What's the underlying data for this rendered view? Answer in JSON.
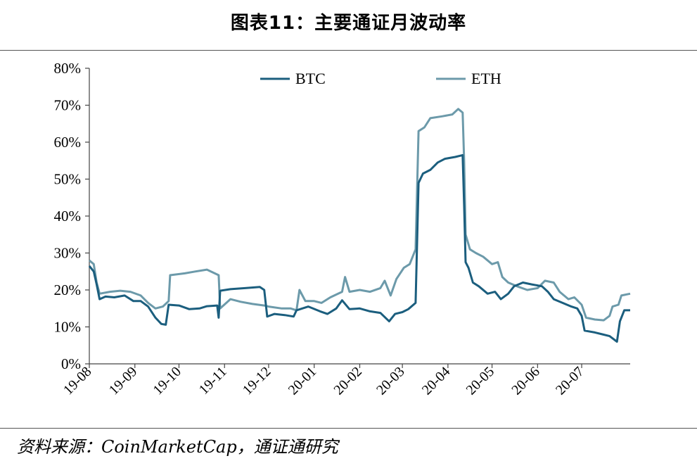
{
  "page": {
    "title": "图表11：主要通证月波动率",
    "source": "资料来源：CoinMarketCap，通证通研究"
  },
  "chart_data": {
    "type": "line",
    "title": "图表11：主要通证月波动率",
    "xlabel": "",
    "ylabel": "",
    "ylim": [
      0,
      80
    ],
    "y_ticks": [
      "0%",
      "10%",
      "20%",
      "30%",
      "40%",
      "50%",
      "60%",
      "70%",
      "80%"
    ],
    "x_ticks": [
      "19-08",
      "19-09",
      "19-10",
      "19-11",
      "19-12",
      "20-01",
      "20-02",
      "20-03",
      "20-04",
      "20-05",
      "20-06",
      "20-07"
    ],
    "x_range": [
      "2019-08-01",
      "2020-08-03"
    ],
    "legend_position": "top",
    "grid": false,
    "series": [
      {
        "name": "BTC",
        "color": "#1b5e7e",
        "points": [
          [
            "2019-08-01",
            26.5
          ],
          [
            "2019-08-04",
            25.0
          ],
          [
            "2019-08-06",
            21.5
          ],
          [
            "2019-08-08",
            17.5
          ],
          [
            "2019-08-12",
            18.2
          ],
          [
            "2019-08-18",
            18.0
          ],
          [
            "2019-08-25",
            18.5
          ],
          [
            "2019-08-31",
            17.0
          ],
          [
            "2019-09-05",
            17.0
          ],
          [
            "2019-09-10",
            15.5
          ],
          [
            "2019-09-15",
            12.5
          ],
          [
            "2019-09-19",
            10.8
          ],
          [
            "2019-09-22",
            10.6
          ],
          [
            "2019-09-24",
            16.0
          ],
          [
            "2019-10-01",
            15.8
          ],
          [
            "2019-10-08",
            14.8
          ],
          [
            "2019-10-15",
            15.0
          ],
          [
            "2019-10-20",
            15.6
          ],
          [
            "2019-10-27",
            15.8
          ],
          [
            "2019-10-28",
            12.5
          ],
          [
            "2019-10-29",
            19.8
          ],
          [
            "2019-11-05",
            20.2
          ],
          [
            "2019-11-15",
            20.5
          ],
          [
            "2019-11-25",
            20.8
          ],
          [
            "2019-11-28",
            20.0
          ],
          [
            "2019-11-30",
            12.8
          ],
          [
            "2019-12-05",
            13.5
          ],
          [
            "2019-12-12",
            13.2
          ],
          [
            "2019-12-18",
            12.8
          ],
          [
            "2019-12-20",
            14.5
          ],
          [
            "2019-12-28",
            15.5
          ],
          [
            "2020-01-05",
            14.2
          ],
          [
            "2020-01-10",
            13.5
          ],
          [
            "2020-01-16",
            15.0
          ],
          [
            "2020-01-20",
            17.2
          ],
          [
            "2020-01-25",
            14.8
          ],
          [
            "2020-02-01",
            15.0
          ],
          [
            "2020-02-08",
            14.2
          ],
          [
            "2020-02-15",
            13.8
          ],
          [
            "2020-02-21",
            11.5
          ],
          [
            "2020-02-25",
            13.5
          ],
          [
            "2020-03-01",
            14.0
          ],
          [
            "2020-03-05",
            14.8
          ],
          [
            "2020-03-10",
            16.5
          ],
          [
            "2020-03-12",
            49.0
          ],
          [
            "2020-03-15",
            51.5
          ],
          [
            "2020-03-20",
            52.5
          ],
          [
            "2020-03-25",
            54.5
          ],
          [
            "2020-03-30",
            55.5
          ],
          [
            "2020-04-06",
            56.0
          ],
          [
            "2020-04-11",
            56.5
          ],
          [
            "2020-04-12",
            43.0
          ],
          [
            "2020-04-13",
            27.5
          ],
          [
            "2020-04-15",
            26.0
          ],
          [
            "2020-04-18",
            22.0
          ],
          [
            "2020-04-22",
            21.0
          ],
          [
            "2020-04-28",
            19.0
          ],
          [
            "2020-05-03",
            19.5
          ],
          [
            "2020-05-07",
            17.5
          ],
          [
            "2020-05-12",
            19.0
          ],
          [
            "2020-05-16",
            21.0
          ],
          [
            "2020-05-22",
            22.0
          ],
          [
            "2020-05-28",
            21.5
          ],
          [
            "2020-06-04",
            21.0
          ],
          [
            "2020-06-08",
            19.5
          ],
          [
            "2020-06-12",
            17.5
          ],
          [
            "2020-06-18",
            16.5
          ],
          [
            "2020-06-24",
            15.5
          ],
          [
            "2020-06-28",
            15.0
          ],
          [
            "2020-07-01",
            13.0
          ],
          [
            "2020-07-03",
            9.0
          ],
          [
            "2020-07-10",
            8.5
          ],
          [
            "2020-07-15",
            8.0
          ],
          [
            "2020-07-20",
            7.5
          ],
          [
            "2020-07-25",
            6.0
          ],
          [
            "2020-07-27",
            11.5
          ],
          [
            "2020-07-30",
            14.5
          ],
          [
            "2020-08-03",
            14.5
          ]
        ]
      },
      {
        "name": "ETH",
        "color": "#6c9aaa",
        "points": [
          [
            "2019-08-01",
            28.0
          ],
          [
            "2019-08-04",
            27.0
          ],
          [
            "2019-08-06",
            22.0
          ],
          [
            "2019-08-08",
            19.0
          ],
          [
            "2019-08-15",
            19.5
          ],
          [
            "2019-08-22",
            19.8
          ],
          [
            "2019-08-29",
            19.5
          ],
          [
            "2019-09-05",
            18.5
          ],
          [
            "2019-09-10",
            16.5
          ],
          [
            "2019-09-15",
            15.0
          ],
          [
            "2019-09-20",
            15.5
          ],
          [
            "2019-09-24",
            17.0
          ],
          [
            "2019-09-25",
            24.0
          ],
          [
            "2019-10-05",
            24.5
          ],
          [
            "2019-10-12",
            25.0
          ],
          [
            "2019-10-20",
            25.5
          ],
          [
            "2019-10-28",
            24.0
          ],
          [
            "2019-10-29",
            15.0
          ],
          [
            "2019-11-05",
            17.5
          ],
          [
            "2019-11-12",
            16.8
          ],
          [
            "2019-11-20",
            16.2
          ],
          [
            "2019-11-28",
            15.8
          ],
          [
            "2019-12-01",
            15.5
          ],
          [
            "2019-12-10",
            15.0
          ],
          [
            "2019-12-16",
            15.0
          ],
          [
            "2019-12-20",
            14.5
          ],
          [
            "2019-12-22",
            20.0
          ],
          [
            "2019-12-26",
            17.0
          ],
          [
            "2020-01-01",
            17.0
          ],
          [
            "2020-01-06",
            16.5
          ],
          [
            "2020-01-12",
            18.0
          ],
          [
            "2020-01-20",
            19.5
          ],
          [
            "2020-01-22",
            23.5
          ],
          [
            "2020-01-25",
            19.5
          ],
          [
            "2020-02-01",
            20.0
          ],
          [
            "2020-02-08",
            19.5
          ],
          [
            "2020-02-15",
            20.5
          ],
          [
            "2020-02-18",
            22.5
          ],
          [
            "2020-02-22",
            18.5
          ],
          [
            "2020-02-26",
            23.0
          ],
          [
            "2020-03-02",
            26.0
          ],
          [
            "2020-03-06",
            27.0
          ],
          [
            "2020-03-10",
            31.0
          ],
          [
            "2020-03-12",
            63.0
          ],
          [
            "2020-03-16",
            64.0
          ],
          [
            "2020-03-20",
            66.5
          ],
          [
            "2020-03-28",
            67.0
          ],
          [
            "2020-04-04",
            67.5
          ],
          [
            "2020-04-08",
            69.0
          ],
          [
            "2020-04-11",
            68.0
          ],
          [
            "2020-04-12",
            55.0
          ],
          [
            "2020-04-13",
            35.0
          ],
          [
            "2020-04-16",
            31.0
          ],
          [
            "2020-04-20",
            30.0
          ],
          [
            "2020-04-25",
            29.0
          ],
          [
            "2020-05-01",
            27.0
          ],
          [
            "2020-05-05",
            27.5
          ],
          [
            "2020-05-08",
            23.5
          ],
          [
            "2020-05-12",
            22.0
          ],
          [
            "2020-05-18",
            21.0
          ],
          [
            "2020-05-25",
            20.0
          ],
          [
            "2020-06-01",
            20.5
          ],
          [
            "2020-06-06",
            22.5
          ],
          [
            "2020-06-12",
            22.0
          ],
          [
            "2020-06-16",
            19.5
          ],
          [
            "2020-06-22",
            17.5
          ],
          [
            "2020-06-26",
            18.0
          ],
          [
            "2020-07-01",
            16.0
          ],
          [
            "2020-07-04",
            12.5
          ],
          [
            "2020-07-10",
            12.0
          ],
          [
            "2020-07-16",
            11.8
          ],
          [
            "2020-07-20",
            13.0
          ],
          [
            "2020-07-22",
            15.5
          ],
          [
            "2020-07-26",
            16.0
          ],
          [
            "2020-07-28",
            18.5
          ],
          [
            "2020-08-03",
            19.0
          ]
        ]
      }
    ]
  }
}
